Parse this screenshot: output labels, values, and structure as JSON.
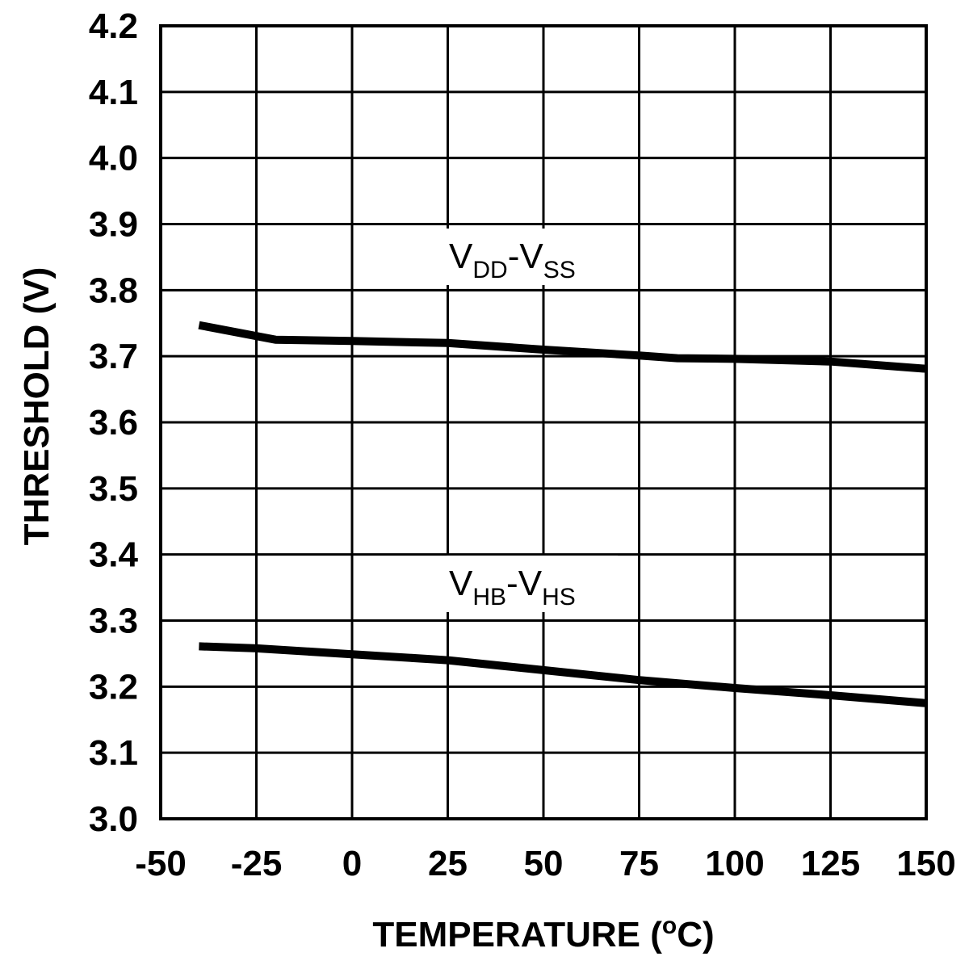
{
  "chart_data": {
    "type": "line",
    "title": "",
    "xlabel": "TEMPERATURE (ºC)",
    "xlabel_parts": {
      "pre": "TEMPERATURE (",
      "sup": "o",
      "post": "C)"
    },
    "ylabel": "THRESHOLD (V)",
    "xlim": [
      -50,
      150
    ],
    "ylim": [
      3.0,
      4.2
    ],
    "x_ticks": [
      "-50",
      "-25",
      "0",
      "25",
      "50",
      "75",
      "100",
      "125",
      "150"
    ],
    "y_ticks": [
      "3.0",
      "3.1",
      "3.2",
      "3.3",
      "3.4",
      "3.5",
      "3.6",
      "3.7",
      "3.8",
      "3.9",
      "4.0",
      "4.1",
      "4.2"
    ],
    "grid": true,
    "series": [
      {
        "name": "VDD-VSS",
        "label": {
          "main1": "V",
          "sub1": "DD",
          "sep": "-",
          "main2": "V",
          "sub2": "SS"
        },
        "x": [
          -40,
          -20,
          0,
          25,
          50,
          75,
          85,
          100,
          125,
          150
        ],
        "y": [
          3.747,
          3.725,
          3.723,
          3.72,
          3.71,
          3.701,
          3.697,
          3.696,
          3.692,
          3.681
        ]
      },
      {
        "name": "VHB-VHS",
        "label": {
          "main1": "V",
          "sub1": "HB",
          "sep": "-",
          "main2": "V",
          "sub2": "HS"
        },
        "x": [
          -40,
          -25,
          0,
          25,
          50,
          75,
          100,
          125,
          150
        ],
        "y": [
          3.261,
          3.258,
          3.249,
          3.24,
          3.225,
          3.21,
          3.198,
          3.187,
          3.175
        ]
      }
    ]
  }
}
